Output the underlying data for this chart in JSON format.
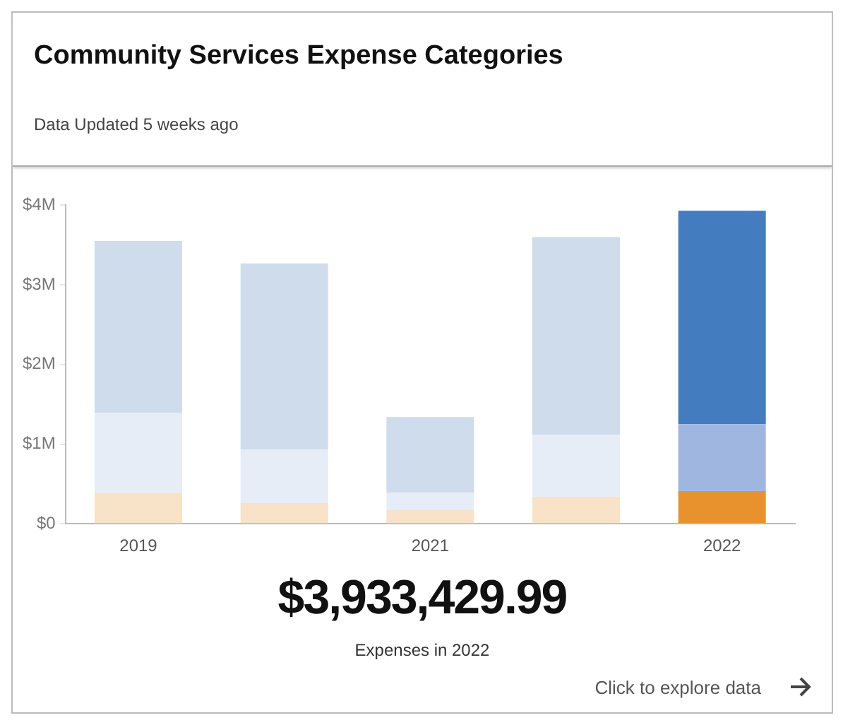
{
  "chart_data": {
    "type": "bar",
    "title": "Community Services Expense Categories",
    "subtitle": "Data Updated 5 weeks ago",
    "categories": [
      "2019",
      null,
      "2021",
      null,
      "2022"
    ],
    "stacked": true,
    "series": [
      {
        "colors": [
          "#f8e2c8",
          "#f8e2c8",
          "#f8e2c8",
          "#f8e2c8",
          "#e8922e"
        ],
        "values": [
          0.39,
          0.26,
          0.17,
          0.34,
          0.41
        ]
      },
      {
        "colors": [
          "#e6edf7",
          "#e6edf7",
          "#e6edf7",
          "#e6edf7",
          "#9fb6e0"
        ],
        "values": [
          1.0,
          0.67,
          0.22,
          0.78,
          0.84
        ]
      },
      {
        "colors": [
          "#cfdcec",
          "#cfdcec",
          "#cfdcec",
          "#cfdcec",
          "#447dbf"
        ],
        "values": [
          2.16,
          2.34,
          0.95,
          2.48,
          2.68
        ]
      }
    ],
    "ylim": [
      0,
      4
    ],
    "yticks": [
      {
        "value": 0,
        "label": "$0"
      },
      {
        "value": 1,
        "label": "$1M"
      },
      {
        "value": 2,
        "label": "$2M"
      },
      {
        "value": 3,
        "label": "$3M"
      },
      {
        "value": 4,
        "label": "$4M"
      }
    ],
    "annotations": [
      "$3,933,429.99",
      "Expenses in 2022",
      "Click to explore data"
    ]
  }
}
